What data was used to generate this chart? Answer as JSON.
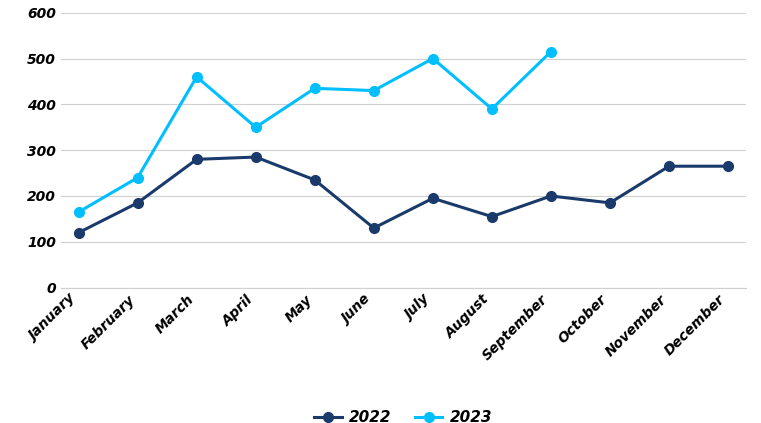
{
  "months": [
    "January",
    "February",
    "March",
    "April",
    "May",
    "June",
    "July",
    "August",
    "September",
    "October",
    "November",
    "December"
  ],
  "values_2022": [
    120,
    185,
    280,
    285,
    235,
    130,
    195,
    155,
    200,
    185,
    265,
    265
  ],
  "values_2023": [
    165,
    240,
    460,
    350,
    435,
    430,
    500,
    390,
    515,
    null,
    null,
    null
  ],
  "color_2022": "#1a3a6b",
  "color_2023": "#00bfff",
  "marker": "o",
  "linewidth": 2.2,
  "markersize": 7,
  "ylim": [
    0,
    600
  ],
  "yticks": [
    0,
    100,
    200,
    300,
    400,
    500,
    600
  ],
  "legend_labels": [
    "2022",
    "2023"
  ],
  "background_color": "#ffffff",
  "grid_color": "#d0d0d0"
}
